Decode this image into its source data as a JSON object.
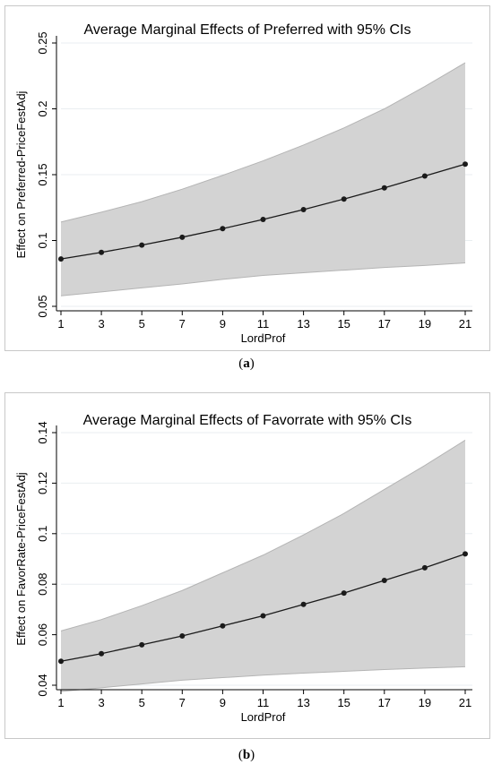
{
  "chart_data": [
    {
      "type": "line",
      "title": "Average Marginal Effects of Preferred with 95% CIs",
      "xlabel": "LordProf",
      "ylabel": "Effect on Preferred-PriceFestAdj",
      "x": [
        1,
        3,
        5,
        7,
        9,
        11,
        13,
        15,
        17,
        19,
        21
      ],
      "x_ticks": [
        "1",
        "3",
        "5",
        "7",
        "9",
        "11",
        "13",
        "15",
        "17",
        "19",
        "21"
      ],
      "y_ticks": [
        "0.05",
        "0.1",
        "0.15",
        "0.2",
        "0.25"
      ],
      "y_tick_values": [
        0.05,
        0.1,
        0.15,
        0.2,
        0.25
      ],
      "xlim": [
        1,
        21
      ],
      "ylim": [
        0.05,
        0.25
      ],
      "grid": true,
      "series": [
        {
          "values": [
            0.086,
            0.091,
            0.0965,
            0.1025,
            0.109,
            0.116,
            0.1235,
            0.1315,
            0.14,
            0.149,
            0.158
          ],
          "ci_lower": [
            0.058,
            0.061,
            0.064,
            0.067,
            0.0705,
            0.0735,
            0.0755,
            0.0775,
            0.0795,
            0.081,
            0.083
          ],
          "ci_upper": [
            0.114,
            0.1215,
            0.1295,
            0.139,
            0.1495,
            0.1605,
            0.1725,
            0.1855,
            0.2,
            0.217,
            0.235
          ]
        }
      ],
      "colors": {
        "ci_band": "#d3d3d3",
        "ci_edge": "#b4b4b4",
        "line": "#1a1a1a",
        "grid": "#e9eef1"
      }
    },
    {
      "type": "line",
      "title": "Average Marginal Effects of Favorrate with 95% CIs",
      "xlabel": "LordProf",
      "ylabel": "Effect on FavorRate-PriceFestAdj",
      "x": [
        1,
        3,
        5,
        7,
        9,
        11,
        13,
        15,
        17,
        19,
        21
      ],
      "x_ticks": [
        "1",
        "3",
        "5",
        "7",
        "9",
        "11",
        "13",
        "15",
        "17",
        "19",
        "21"
      ],
      "y_ticks": [
        "0.04",
        "0.06",
        "0.08",
        "0.1",
        "0.12",
        "0.14"
      ],
      "y_tick_values": [
        0.04,
        0.06,
        0.08,
        0.1,
        0.12,
        0.14
      ],
      "xlim": [
        1,
        21
      ],
      "ylim": [
        0.04,
        0.14
      ],
      "grid": true,
      "series": [
        {
          "values": [
            0.0495,
            0.0525,
            0.056,
            0.0595,
            0.0635,
            0.0675,
            0.072,
            0.0765,
            0.0815,
            0.0865,
            0.092
          ],
          "ci_lower": [
            0.0375,
            0.039,
            0.0405,
            0.042,
            0.043,
            0.044,
            0.0448,
            0.0455,
            0.0462,
            0.0468,
            0.0473
          ],
          "ci_upper": [
            0.0615,
            0.066,
            0.0715,
            0.0775,
            0.0845,
            0.0915,
            0.0995,
            0.108,
            0.1175,
            0.127,
            0.137
          ]
        }
      ],
      "colors": {
        "ci_band": "#d3d3d3",
        "ci_edge": "#b4b4b4",
        "line": "#1a1a1a",
        "grid": "#e9eef1"
      }
    }
  ],
  "captions": [
    {
      "label": "a"
    },
    {
      "label": "b"
    }
  ]
}
